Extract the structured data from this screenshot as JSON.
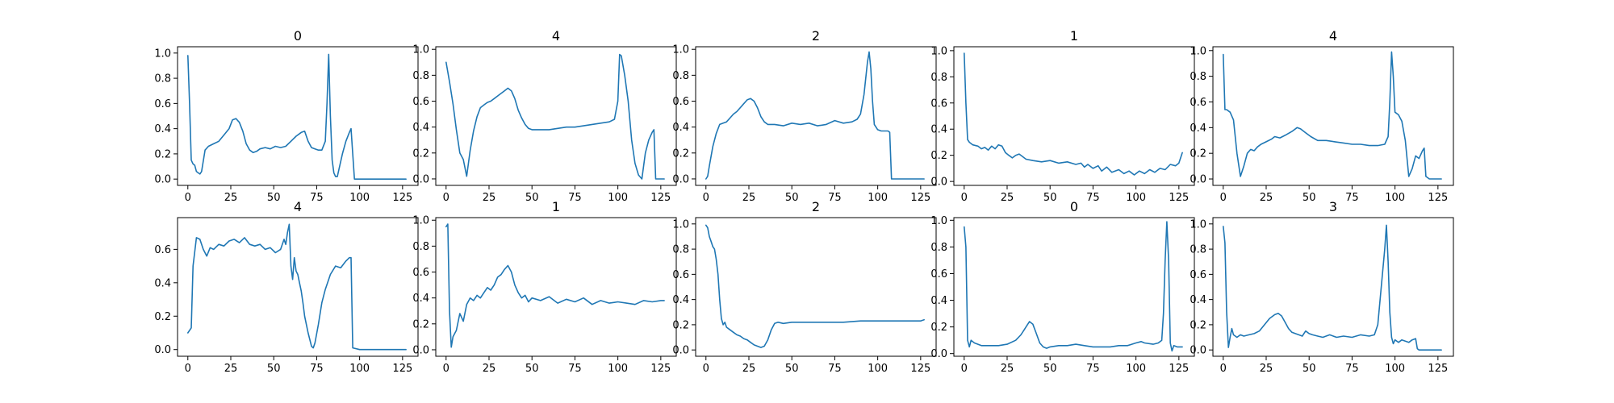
{
  "figure": {
    "background": "#ffffff",
    "line_color": "#1f77b4"
  },
  "chart_data": [
    {
      "type": "line",
      "title": "0",
      "xlim": [
        -6,
        134
      ],
      "ylim": [
        -0.05,
        1.05
      ],
      "xticks": [
        0,
        25,
        50,
        75,
        100,
        125
      ],
      "yticks": [
        0.0,
        0.2,
        0.4,
        0.6,
        0.8,
        1.0
      ],
      "ytick_labels": [
        "0.0",
        "0.2",
        "0.4",
        "0.6",
        "0.8",
        "1.0"
      ],
      "x": [
        0,
        1,
        2,
        3,
        4,
        5,
        6,
        7,
        8,
        10,
        12,
        15,
        18,
        21,
        24,
        26,
        28,
        30,
        32,
        34,
        36,
        38,
        40,
        42,
        45,
        48,
        51,
        54,
        57,
        60,
        63,
        66,
        68,
        70,
        72,
        74,
        76,
        78,
        80,
        81,
        82,
        83,
        84,
        85,
        86,
        87,
        88,
        90,
        92,
        94,
        95,
        96,
        97,
        100,
        110,
        120,
        127
      ],
      "y": [
        0.98,
        0.6,
        0.15,
        0.12,
        0.11,
        0.06,
        0.05,
        0.04,
        0.06,
        0.23,
        0.26,
        0.28,
        0.3,
        0.35,
        0.4,
        0.47,
        0.48,
        0.45,
        0.38,
        0.28,
        0.23,
        0.21,
        0.22,
        0.24,
        0.25,
        0.24,
        0.26,
        0.25,
        0.26,
        0.3,
        0.34,
        0.37,
        0.38,
        0.3,
        0.25,
        0.24,
        0.23,
        0.23,
        0.3,
        0.6,
        0.99,
        0.5,
        0.15,
        0.05,
        0.02,
        0.02,
        0.08,
        0.2,
        0.3,
        0.37,
        0.4,
        0.2,
        0.0,
        0.0,
        0.0,
        0.0,
        0.0
      ]
    },
    {
      "type": "line",
      "title": "4",
      "xlim": [
        -6,
        134
      ],
      "ylim": [
        -0.05,
        1.02
      ],
      "xticks": [
        0,
        25,
        50,
        75,
        100,
        125
      ],
      "yticks": [
        0.0,
        0.2,
        0.4,
        0.6,
        0.8,
        1.0
      ],
      "ytick_labels": [
        "0.0",
        "0.2",
        "0.4",
        "0.6",
        "0.8",
        "1.0"
      ],
      "x": [
        0,
        2,
        4,
        6,
        8,
        10,
        12,
        14,
        16,
        18,
        20,
        22,
        24,
        26,
        28,
        30,
        32,
        34,
        36,
        38,
        40,
        42,
        44,
        46,
        48,
        50,
        55,
        60,
        65,
        70,
        75,
        80,
        85,
        90,
        95,
        98,
        100,
        101,
        102,
        104,
        106,
        108,
        110,
        112,
        114,
        116,
        118,
        120,
        121,
        122,
        124,
        127
      ],
      "y": [
        0.9,
        0.75,
        0.58,
        0.38,
        0.2,
        0.15,
        0.02,
        0.22,
        0.37,
        0.48,
        0.55,
        0.57,
        0.59,
        0.6,
        0.62,
        0.64,
        0.66,
        0.68,
        0.7,
        0.68,
        0.62,
        0.53,
        0.47,
        0.42,
        0.39,
        0.38,
        0.38,
        0.38,
        0.39,
        0.4,
        0.4,
        0.41,
        0.42,
        0.43,
        0.44,
        0.46,
        0.6,
        0.96,
        0.95,
        0.8,
        0.6,
        0.3,
        0.12,
        0.03,
        0.0,
        0.2,
        0.3,
        0.36,
        0.38,
        0.0,
        0.0,
        0.0
      ]
    },
    {
      "type": "line",
      "title": "2",
      "xlim": [
        -6,
        134
      ],
      "ylim": [
        -0.05,
        1.02
      ],
      "xticks": [
        0,
        25,
        50,
        75,
        100,
        125
      ],
      "yticks": [
        0.0,
        0.2,
        0.4,
        0.6,
        0.8,
        1.0
      ],
      "ytick_labels": [
        "0.0",
        "0.2",
        "0.4",
        "0.6",
        "0.8",
        "1.0"
      ],
      "x": [
        0,
        1,
        2,
        4,
        6,
        8,
        10,
        12,
        14,
        16,
        18,
        20,
        22,
        24,
        26,
        28,
        30,
        32,
        34,
        36,
        40,
        45,
        50,
        55,
        60,
        65,
        70,
        75,
        80,
        85,
        88,
        90,
        92,
        94,
        95,
        96,
        97,
        98,
        100,
        102,
        104,
        106,
        107,
        108,
        127
      ],
      "y": [
        0.0,
        0.02,
        0.1,
        0.25,
        0.35,
        0.42,
        0.43,
        0.44,
        0.47,
        0.5,
        0.52,
        0.55,
        0.58,
        0.61,
        0.62,
        0.6,
        0.55,
        0.48,
        0.44,
        0.42,
        0.42,
        0.41,
        0.43,
        0.42,
        0.43,
        0.41,
        0.42,
        0.45,
        0.43,
        0.44,
        0.46,
        0.5,
        0.65,
        0.9,
        0.98,
        0.85,
        0.6,
        0.42,
        0.38,
        0.37,
        0.37,
        0.37,
        0.36,
        0.0,
        0.0
      ]
    },
    {
      "type": "line",
      "title": "1",
      "xlim": [
        -6,
        134
      ],
      "ylim": [
        -0.03,
        1.03
      ],
      "xticks": [
        0,
        25,
        50,
        75,
        100,
        125
      ],
      "yticks": [
        0.0,
        0.2,
        0.4,
        0.6,
        0.8,
        1.0
      ],
      "ytick_labels": [
        "0.0",
        "0.2",
        "0.4",
        "0.6",
        "0.8",
        "1.0"
      ],
      "x": [
        0,
        1,
        2,
        3,
        5,
        8,
        10,
        12,
        14,
        16,
        18,
        20,
        22,
        24,
        26,
        28,
        30,
        32,
        34,
        36,
        40,
        45,
        50,
        55,
        60,
        65,
        68,
        70,
        72,
        75,
        78,
        80,
        83,
        86,
        90,
        93,
        96,
        99,
        102,
        105,
        108,
        111,
        114,
        117,
        120,
        123,
        125,
        127
      ],
      "y": [
        0.98,
        0.6,
        0.32,
        0.3,
        0.28,
        0.27,
        0.25,
        0.26,
        0.24,
        0.27,
        0.25,
        0.28,
        0.27,
        0.22,
        0.2,
        0.18,
        0.2,
        0.21,
        0.19,
        0.17,
        0.16,
        0.15,
        0.16,
        0.14,
        0.15,
        0.13,
        0.14,
        0.11,
        0.13,
        0.1,
        0.12,
        0.08,
        0.11,
        0.07,
        0.09,
        0.06,
        0.08,
        0.05,
        0.08,
        0.06,
        0.09,
        0.07,
        0.1,
        0.09,
        0.13,
        0.12,
        0.14,
        0.22
      ]
    },
    {
      "type": "line",
      "title": "4",
      "xlim": [
        -6,
        134
      ],
      "ylim": [
        -0.05,
        1.03
      ],
      "xticks": [
        0,
        25,
        50,
        75,
        100,
        125
      ],
      "yticks": [
        0.0,
        0.2,
        0.4,
        0.6,
        0.8,
        1.0
      ],
      "ytick_labels": [
        "0.0",
        "0.2",
        "0.4",
        "0.6",
        "0.8",
        "1.0"
      ],
      "x": [
        0,
        1,
        2,
        4,
        6,
        8,
        10,
        12,
        14,
        16,
        18,
        20,
        22,
        25,
        28,
        30,
        33,
        36,
        40,
        43,
        45,
        48,
        51,
        55,
        60,
        65,
        70,
        75,
        80,
        85,
        90,
        94,
        96,
        97,
        98,
        99,
        100,
        102,
        104,
        106,
        108,
        110,
        112,
        114,
        116,
        117,
        118,
        120,
        127
      ],
      "y": [
        0.97,
        0.54,
        0.54,
        0.52,
        0.46,
        0.2,
        0.02,
        0.1,
        0.2,
        0.23,
        0.22,
        0.25,
        0.27,
        0.29,
        0.31,
        0.33,
        0.32,
        0.34,
        0.37,
        0.4,
        0.39,
        0.36,
        0.33,
        0.3,
        0.3,
        0.29,
        0.28,
        0.27,
        0.27,
        0.26,
        0.26,
        0.27,
        0.33,
        0.6,
        0.99,
        0.8,
        0.52,
        0.5,
        0.45,
        0.3,
        0.02,
        0.08,
        0.18,
        0.16,
        0.22,
        0.24,
        0.02,
        0.0,
        0.0
      ]
    },
    {
      "type": "line",
      "title": "4",
      "xlim": [
        -6,
        134
      ],
      "ylim": [
        -0.04,
        0.79
      ],
      "xticks": [
        0,
        25,
        50,
        75,
        100,
        125
      ],
      "yticks": [
        0.0,
        0.2,
        0.4,
        0.6
      ],
      "ytick_labels": [
        "0.0",
        "0.2",
        "0.4",
        "0.6"
      ],
      "x": [
        0,
        2,
        3,
        5,
        7,
        9,
        11,
        13,
        15,
        18,
        21,
        24,
        27,
        30,
        33,
        36,
        39,
        42,
        45,
        48,
        51,
        54,
        56,
        57,
        58,
        59,
        60,
        61,
        62,
        63,
        64,
        65,
        66,
        67,
        68,
        70,
        72,
        73,
        74,
        76,
        78,
        80,
        83,
        86,
        89,
        92,
        94,
        95,
        96,
        100,
        110,
        120,
        127
      ],
      "y": [
        0.1,
        0.13,
        0.5,
        0.67,
        0.66,
        0.6,
        0.56,
        0.61,
        0.6,
        0.63,
        0.62,
        0.65,
        0.66,
        0.64,
        0.67,
        0.63,
        0.62,
        0.63,
        0.6,
        0.61,
        0.58,
        0.6,
        0.66,
        0.63,
        0.7,
        0.75,
        0.5,
        0.42,
        0.55,
        0.47,
        0.45,
        0.4,
        0.35,
        0.28,
        0.2,
        0.1,
        0.02,
        0.01,
        0.04,
        0.15,
        0.28,
        0.36,
        0.45,
        0.5,
        0.49,
        0.53,
        0.55,
        0.55,
        0.01,
        0.0,
        0.0,
        0.0,
        0.0
      ]
    },
    {
      "type": "line",
      "title": "1",
      "xlim": [
        -6,
        134
      ],
      "ylim": [
        -0.05,
        1.02
      ],
      "xticks": [
        0,
        25,
        50,
        75,
        100,
        125
      ],
      "yticks": [
        0.0,
        0.2,
        0.4,
        0.6,
        0.8,
        1.0
      ],
      "ytick_labels": [
        "0.0",
        "0.2",
        "0.4",
        "0.6",
        "0.8",
        "1.0"
      ],
      "x": [
        0,
        1,
        2,
        3,
        4,
        6,
        8,
        10,
        12,
        14,
        16,
        18,
        20,
        22,
        24,
        26,
        28,
        30,
        32,
        34,
        36,
        38,
        40,
        42,
        44,
        46,
        48,
        50,
        55,
        60,
        65,
        70,
        75,
        80,
        85,
        90,
        95,
        100,
        105,
        110,
        115,
        120,
        125,
        127
      ],
      "y": [
        0.95,
        0.97,
        0.3,
        0.02,
        0.1,
        0.15,
        0.28,
        0.22,
        0.35,
        0.4,
        0.38,
        0.42,
        0.4,
        0.44,
        0.48,
        0.46,
        0.5,
        0.56,
        0.58,
        0.62,
        0.65,
        0.6,
        0.5,
        0.44,
        0.4,
        0.42,
        0.37,
        0.4,
        0.38,
        0.41,
        0.36,
        0.39,
        0.37,
        0.4,
        0.35,
        0.38,
        0.36,
        0.37,
        0.36,
        0.35,
        0.38,
        0.37,
        0.38,
        0.38
      ]
    },
    {
      "type": "line",
      "title": "2",
      "xlim": [
        -6,
        134
      ],
      "ylim": [
        -0.05,
        1.05
      ],
      "xticks": [
        0,
        25,
        50,
        75,
        100,
        125
      ],
      "yticks": [
        0.0,
        0.2,
        0.4,
        0.6,
        0.8,
        1.0
      ],
      "ytick_labels": [
        "0.0",
        "0.2",
        "0.4",
        "0.6",
        "0.8",
        "1.0"
      ],
      "x": [
        0,
        1,
        2,
        3,
        4,
        5,
        6,
        7,
        8,
        9,
        10,
        11,
        12,
        14,
        16,
        18,
        20,
        22,
        24,
        26,
        28,
        30,
        32,
        34,
        36,
        38,
        40,
        42,
        45,
        50,
        60,
        70,
        80,
        90,
        100,
        110,
        120,
        125,
        127
      ],
      "y": [
        0.99,
        0.97,
        0.9,
        0.86,
        0.82,
        0.8,
        0.72,
        0.6,
        0.4,
        0.25,
        0.2,
        0.22,
        0.18,
        0.16,
        0.14,
        0.12,
        0.11,
        0.09,
        0.08,
        0.06,
        0.04,
        0.03,
        0.02,
        0.03,
        0.08,
        0.16,
        0.21,
        0.22,
        0.21,
        0.22,
        0.22,
        0.22,
        0.22,
        0.23,
        0.23,
        0.23,
        0.23,
        0.23,
        0.24
      ]
    },
    {
      "type": "line",
      "title": "0",
      "xlim": [
        -6,
        134
      ],
      "ylim": [
        -0.02,
        1.02
      ],
      "xticks": [
        0,
        25,
        50,
        75,
        100,
        125
      ],
      "yticks": [
        0.0,
        0.2,
        0.4,
        0.6,
        0.8,
        1.0
      ],
      "ytick_labels": [
        "0.0",
        "0.2",
        "0.4",
        "0.6",
        "0.8",
        "1.0"
      ],
      "x": [
        0,
        1,
        2,
        3,
        4,
        6,
        8,
        10,
        15,
        20,
        25,
        30,
        33,
        35,
        37,
        38,
        40,
        42,
        44,
        46,
        48,
        50,
        55,
        60,
        65,
        70,
        75,
        80,
        85,
        90,
        95,
        100,
        103,
        105,
        110,
        113,
        115,
        116,
        117,
        118,
        119,
        120,
        121,
        122,
        124,
        127
      ],
      "y": [
        0.95,
        0.8,
        0.1,
        0.05,
        0.1,
        0.08,
        0.07,
        0.06,
        0.06,
        0.06,
        0.07,
        0.1,
        0.14,
        0.18,
        0.22,
        0.24,
        0.22,
        0.15,
        0.08,
        0.05,
        0.04,
        0.05,
        0.06,
        0.06,
        0.07,
        0.06,
        0.05,
        0.05,
        0.05,
        0.06,
        0.06,
        0.08,
        0.09,
        0.08,
        0.07,
        0.08,
        0.1,
        0.3,
        0.7,
        0.99,
        0.7,
        0.08,
        0.02,
        0.06,
        0.05,
        0.05
      ]
    },
    {
      "type": "line",
      "title": "3",
      "xlim": [
        -6,
        134
      ],
      "ylim": [
        -0.05,
        1.05
      ],
      "xticks": [
        0,
        25,
        50,
        75,
        100,
        125
      ],
      "yticks": [
        0.0,
        0.2,
        0.4,
        0.6,
        0.8,
        1.0
      ],
      "ytick_labels": [
        "0.0",
        "0.2",
        "0.4",
        "0.6",
        "0.8",
        "1.0"
      ],
      "x": [
        0,
        1,
        2,
        3,
        4,
        5,
        6,
        8,
        10,
        12,
        15,
        18,
        21,
        24,
        27,
        30,
        32,
        34,
        36,
        38,
        40,
        42,
        44,
        46,
        48,
        50,
        52,
        55,
        58,
        62,
        66,
        70,
        75,
        80,
        85,
        88,
        90,
        92,
        94,
        95,
        96,
        97,
        98,
        99,
        100,
        101,
        102,
        104,
        106,
        108,
        110,
        112,
        113,
        114,
        120,
        127
      ],
      "y": [
        0.98,
        0.85,
        0.3,
        0.02,
        0.1,
        0.17,
        0.12,
        0.1,
        0.12,
        0.11,
        0.12,
        0.13,
        0.15,
        0.2,
        0.25,
        0.28,
        0.29,
        0.27,
        0.22,
        0.17,
        0.14,
        0.13,
        0.12,
        0.11,
        0.15,
        0.13,
        0.12,
        0.11,
        0.1,
        0.12,
        0.1,
        0.11,
        0.1,
        0.12,
        0.11,
        0.12,
        0.2,
        0.5,
        0.8,
        0.99,
        0.7,
        0.3,
        0.1,
        0.05,
        0.08,
        0.07,
        0.06,
        0.08,
        0.07,
        0.06,
        0.08,
        0.09,
        0.01,
        0.0,
        0.0,
        0.0
      ]
    }
  ]
}
